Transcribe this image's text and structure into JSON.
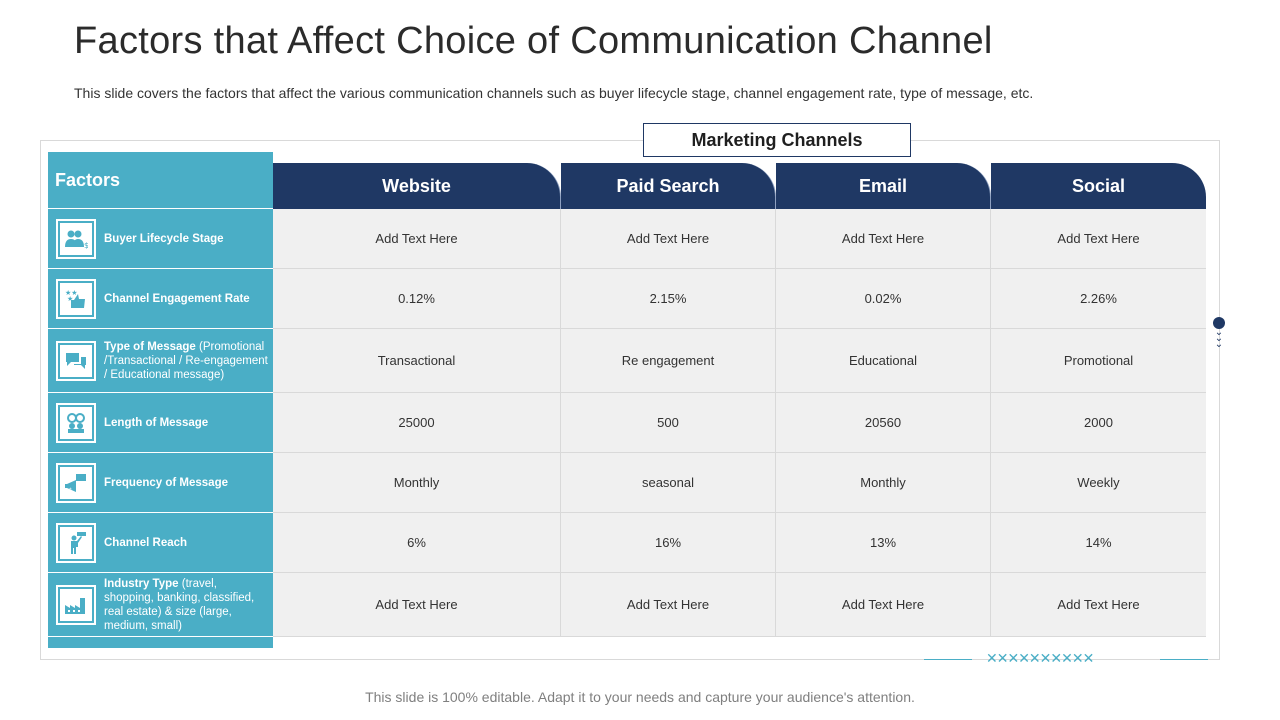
{
  "title": "Factors that Affect Choice of Communication Channel",
  "subtitle": "This slide covers the factors that affect the various communication channels such as buyer lifecycle stage, channel engagement rate, type of message, etc.",
  "marketing_channels_label": "Marketing Channels",
  "factors_header": "Factors",
  "channels": [
    "Website",
    "Paid Search",
    "Email",
    "Social"
  ],
  "rows": [
    {
      "factor": "Buyer Lifecycle Stage",
      "detail": "",
      "icon": "people-dollar-icon",
      "values": [
        "Add Text Here",
        "Add Text Here",
        "Add Text Here",
        "Add Text Here"
      ]
    },
    {
      "factor": "Channel Engagement Rate",
      "detail": "",
      "icon": "thumbs-up-stars-icon",
      "values": [
        "0.12%",
        "2.15%",
        "0.02%",
        "2.26%"
      ]
    },
    {
      "factor": "Type of Message",
      "detail": "(Promotional /Transactional / Re-engagement / Educational message)",
      "icon": "chat-bubbles-icon",
      "values": [
        "Transactional",
        "Re engagement",
        "Educational",
        "Promotional"
      ]
    },
    {
      "factor": "Length of Message",
      "detail": "",
      "icon": "message-group-icon",
      "values": [
        "25000",
        "500",
        "20560",
        "2000"
      ]
    },
    {
      "factor": "Frequency of Message",
      "detail": "",
      "icon": "megaphone-icon",
      "values": [
        "Monthly",
        "seasonal",
        "Monthly",
        "Weekly"
      ]
    },
    {
      "factor": "Channel Reach",
      "detail": "",
      "icon": "person-reaching-icon",
      "values": [
        "6%",
        "16%",
        "13%",
        "14%"
      ]
    },
    {
      "factor": "Industry Type",
      "detail": "(travel, shopping, banking, classified, real estate) & size (large, medium, small)",
      "icon": "factory-icon",
      "values": [
        "Add Text Here",
        "Add Text Here",
        "Add Text Here",
        "Add Text Here"
      ]
    }
  ],
  "deco_xs": "✕✕✕✕✕✕✕✕✕✕",
  "footer": "This slide is 100% editable. Adapt it to your needs and capture your audience's attention.",
  "colors": {
    "navy": "#1f3864",
    "teal": "#4aaec6",
    "cell_bg": "#f0f0f0"
  }
}
